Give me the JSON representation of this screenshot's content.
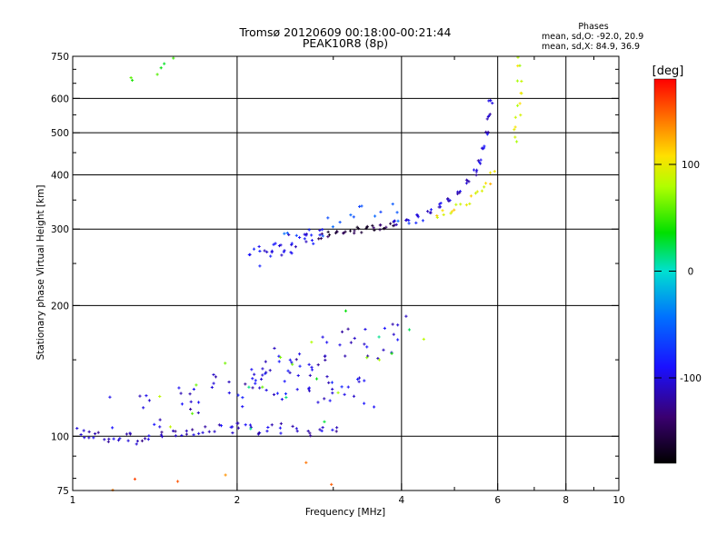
{
  "chart_data": {
    "type": "scatter",
    "title": "Tromsø 20120609 00:18:00-00:21:44",
    "subtitle": "PEAK10R8 (8p)",
    "xlabel": "Frequency [MHz]",
    "ylabel": "Stationary phase Virtual Height [km]",
    "xscale": "log",
    "yscale": "log",
    "xlim": [
      1,
      10
    ],
    "ylim": [
      75,
      750
    ],
    "x_ticks": [
      {
        "value": 1,
        "label": "1"
      },
      {
        "value": 2,
        "label": "2"
      },
      {
        "value": 4,
        "label": "4"
      },
      {
        "value": 6,
        "label": "6"
      },
      {
        "value": 8,
        "label": "8"
      },
      {
        "value": 10,
        "label": "10"
      }
    ],
    "y_ticks": [
      {
        "value": 75,
        "label": "75"
      },
      {
        "value": 100,
        "label": "100"
      },
      {
        "value": 200,
        "label": "200"
      },
      {
        "value": 300,
        "label": "300"
      },
      {
        "value": 400,
        "label": "400"
      },
      {
        "value": 500,
        "label": "500"
      },
      {
        "value": 600,
        "label": "600"
      },
      {
        "value": 750,
        "label": "750"
      }
    ],
    "x_gridlines": [
      2,
      4,
      6,
      8
    ],
    "y_gridlines": [
      100,
      200,
      300,
      400,
      500,
      600
    ],
    "phase_stats": {
      "header": "Phases",
      "line_o": "mean, sd,O: -92.0, 20.9",
      "line_x": "mean, sd,X:  84.9, 36.9"
    },
    "colorbar": {
      "label": "[deg]",
      "range": [
        -180,
        180
      ],
      "tick_labels": [
        {
          "value": 100,
          "label": "100"
        },
        {
          "value": 0,
          "label": "0"
        },
        {
          "value": -100,
          "label": "-100"
        }
      ]
    },
    "traces": [
      {
        "x": [
          1.03,
          1.06,
          1.1,
          1.15,
          1.2,
          1.26,
          1.32,
          1.38,
          1.45,
          1.52,
          1.6,
          1.68,
          1.76,
          1.85,
          1.95,
          2.02,
          2.1,
          2.2,
          2.3,
          2.42,
          2.55,
          2.7,
          2.85,
          3.0
        ],
        "y": [
          102,
          101,
          100,
          99,
          99,
          100,
          98,
          100,
          101,
          102,
          100,
          101,
          103,
          104,
          104,
          106,
          106,
          104,
          105,
          104,
          104,
          103,
          104,
          104
        ],
        "phase": -110,
        "spread": 0.025,
        "dup": 3
      },
      {
        "x": [
          1.2,
          1.3,
          1.4,
          1.5,
          1.6,
          1.7,
          1.8,
          1.9,
          2.0,
          2.1,
          2.2,
          2.3,
          2.45,
          2.6,
          2.75,
          2.9,
          3.05,
          3.2,
          3.35,
          3.5,
          3.65,
          3.8,
          3.95
        ],
        "y": [
          112,
          114,
          116,
          118,
          120,
          124,
          126,
          130,
          134,
          138,
          142,
          146,
          150,
          152,
          155,
          157,
          160,
          162,
          165,
          167,
          170,
          172,
          175
        ],
        "phase": -105,
        "spread": 0.09,
        "dup": 3
      },
      {
        "x": [
          2.05,
          2.15,
          2.25,
          2.35,
          2.45,
          2.55,
          2.65,
          2.75,
          2.85,
          2.95,
          3.05,
          3.15,
          3.3,
          3.45
        ],
        "y": [
          125,
          128,
          130,
          132,
          128,
          134,
          136,
          130,
          132,
          128,
          126,
          130,
          128,
          125
        ],
        "phase": -95,
        "spread": 0.08,
        "dup": 3
      },
      {
        "x": [
          1.35,
          1.45,
          1.55,
          1.75,
          1.95,
          2.15,
          2.35,
          2.55,
          2.85,
          3.15,
          3.45,
          3.75,
          4.05
        ],
        "y": [
          118,
          120,
          122,
          124,
          132,
          140,
          148,
          150,
          146,
          140,
          150,
          160,
          150
        ],
        "phase": 70,
        "spread": 0.12,
        "dup": 1
      },
      {
        "x": [
          2.15,
          2.22,
          2.3,
          2.38,
          2.46,
          2.54,
          2.62,
          2.7,
          2.8
        ],
        "y": [
          258,
          262,
          268,
          272,
          275,
          280,
          284,
          288,
          290
        ],
        "phase": -100,
        "spread": 0.04,
        "dup": 4
      },
      {
        "x": [
          2.85,
          2.95,
          3.05,
          3.15,
          3.25,
          3.35,
          3.45,
          3.55,
          3.65,
          3.75,
          3.85
        ],
        "y": [
          290,
          292,
          294,
          296,
          297,
          299,
          300,
          302,
          304,
          306,
          308
        ],
        "phase": -150,
        "spread": 0.015,
        "dup": 3
      },
      {
        "x": [
          3.9,
          4.1,
          4.3,
          4.5,
          4.7,
          4.9,
          5.1,
          5.3,
          5.45,
          5.55,
          5.65,
          5.72,
          5.78,
          5.82
        ],
        "y": [
          310,
          315,
          322,
          330,
          340,
          350,
          365,
          385,
          405,
          430,
          460,
          500,
          545,
          590
        ],
        "phase": -105,
        "spread": 0.012,
        "dup": 4
      },
      {
        "x": [
          2.45,
          2.65,
          2.85,
          3.05,
          3.25,
          3.45,
          3.65,
          3.85,
          4.05,
          4.25
        ],
        "y": [
          296,
          300,
          306,
          310,
          318,
          322,
          326,
          330,
          318,
          320
        ],
        "phase": -60,
        "spread": 0.05,
        "dup": 2
      },
      {
        "x": [
          4.6,
          4.75,
          4.9,
          5.05,
          5.2,
          5.35,
          5.5,
          5.62,
          5.75,
          5.85
        ],
        "y": [
          320,
          325,
          330,
          336,
          342,
          350,
          360,
          372,
          385,
          400
        ],
        "phase": 105,
        "spread": 0.02,
        "dup": 2
      },
      {
        "x": [
          6.45,
          6.5,
          6.55,
          6.6,
          6.62,
          6.58,
          6.52,
          6.48
        ],
        "y": [
          480,
          510,
          540,
          580,
          620,
          660,
          700,
          740
        ],
        "phase": 90,
        "spread": 0.02,
        "dup": 2
      },
      {
        "x": [
          1.3,
          1.45,
          1.5
        ],
        "y": [
          680,
          690,
          720
        ],
        "phase": 40,
        "spread": 0.03,
        "dup": 2
      },
      {
        "x": [
          2.1,
          2.3,
          2.5,
          2.7,
          2.9,
          3.2,
          3.5,
          3.8,
          4.1
        ],
        "y": [
          120,
          150,
          112,
          160,
          175,
          118,
          145,
          180,
          170
        ],
        "phase": 30,
        "spread": 0.15,
        "dup": 1
      },
      {
        "x": [
          1.15,
          1.3,
          1.6,
          1.9,
          2.6,
          2.95
        ],
        "y": [
          78,
          80,
          82,
          80,
          84,
          82
        ],
        "phase": 150,
        "spread": 0.05,
        "dup": 1
      }
    ]
  }
}
